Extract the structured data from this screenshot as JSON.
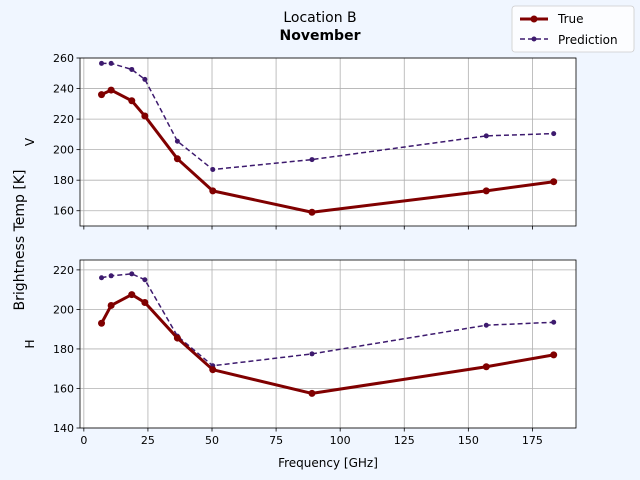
{
  "chart_data": {
    "type": "line",
    "title": "Location B",
    "subtitle": "November",
    "ylabel": "Brightness Temp [K]",
    "xlabel": "Frequency [GHz]",
    "xlim": [
      -1.5,
      192
    ],
    "xticks": [
      0,
      25,
      50,
      75,
      100,
      125,
      150,
      175
    ],
    "grid": true,
    "legend_position": "top-right",
    "legend": [
      {
        "name": "True",
        "color": "#800000",
        "style": "solid"
      },
      {
        "name": "Prediction",
        "color": "#3d1a6e",
        "style": "dashed"
      }
    ],
    "panels": [
      {
        "ylabel": "V",
        "ylim": [
          150,
          260
        ],
        "yticks": [
          160,
          180,
          200,
          220,
          240,
          260
        ],
        "show_x_ticklabels": false,
        "series": [
          {
            "name": "True",
            "x": [
              6.9,
              10.65,
              18.7,
              23.8,
              36.5,
              50.3,
              89,
              157,
              183.3
            ],
            "y": [
              236,
              239,
              232,
              222,
              194,
              173,
              159,
              173,
              179
            ]
          },
          {
            "name": "Prediction",
            "x": [
              6.9,
              10.65,
              18.7,
              23.8,
              36.5,
              50.3,
              89,
              157,
              183.3
            ],
            "y": [
              256.5,
              256.5,
              252.5,
              246,
              205.5,
              187,
              193.5,
              209,
              210.5
            ]
          }
        ]
      },
      {
        "ylabel": "H",
        "ylim": [
          140,
          225
        ],
        "yticks": [
          140,
          160,
          180,
          200,
          220
        ],
        "show_x_ticklabels": true,
        "series": [
          {
            "name": "True",
            "x": [
              6.9,
              10.65,
              18.7,
              23.8,
              36.5,
              50.3,
              89,
              157,
              183.3
            ],
            "y": [
              193,
              202,
              207.5,
              203.5,
              185.5,
              169.5,
              157.5,
              171,
              177
            ]
          },
          {
            "name": "Prediction",
            "x": [
              6.9,
              10.65,
              18.7,
              23.8,
              36.5,
              50.3,
              89,
              157,
              183.3
            ],
            "y": [
              216,
              217,
              218,
              215,
              186.5,
              171.5,
              177.5,
              192,
              193.5
            ]
          }
        ]
      }
    ]
  }
}
